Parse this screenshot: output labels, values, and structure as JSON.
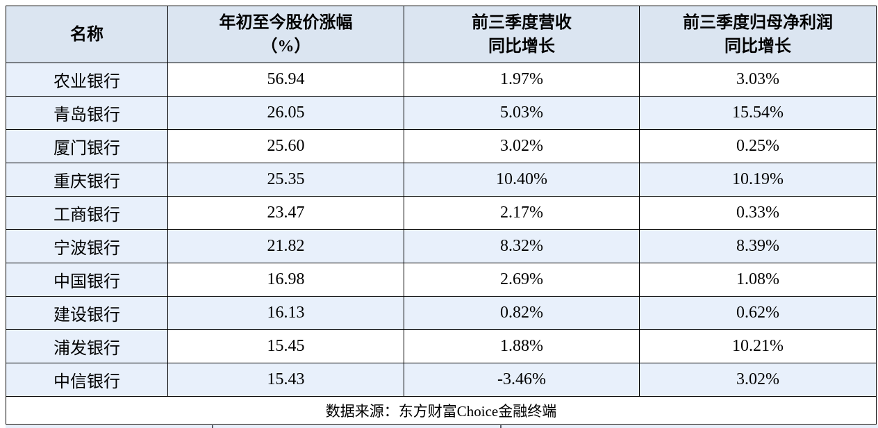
{
  "colors": {
    "header_bg": "#dbe5f1",
    "stripe_bg": "#e8f0fb",
    "row_bg": "#ffffff",
    "border": "#000000",
    "text": "#000000"
  },
  "chart_data": {
    "type": "table",
    "title": "",
    "columns": [
      {
        "label": "名称"
      },
      {
        "line1": "年初至今股价涨幅",
        "line2": "（%）"
      },
      {
        "line1": "前三季度营收",
        "line2": "同比增长"
      },
      {
        "line1": "前三季度归母净利润",
        "line2": "同比增长"
      }
    ],
    "rows": [
      [
        "农业银行",
        "56.94",
        "1.97%",
        "3.03%"
      ],
      [
        "青岛银行",
        "26.05",
        "5.03%",
        "15.54%"
      ],
      [
        "厦门银行",
        "25.60",
        "3.02%",
        "0.25%"
      ],
      [
        "重庆银行",
        "25.35",
        "10.40%",
        "10.19%"
      ],
      [
        "工商银行",
        "23.47",
        "2.17%",
        "0.33%"
      ],
      [
        "宁波银行",
        "21.82",
        "8.32%",
        "8.39%"
      ],
      [
        "中国银行",
        "16.98",
        "2.69%",
        "1.08%"
      ],
      [
        "建设银行",
        "16.13",
        "0.82%",
        "0.62%"
      ],
      [
        "浦发银行",
        "15.45",
        "1.88%",
        "10.21%"
      ],
      [
        "中信银行",
        "15.43",
        "-3.46%",
        "3.02%"
      ]
    ],
    "source_note": "数据来源：东方财富Choice金融终端"
  }
}
